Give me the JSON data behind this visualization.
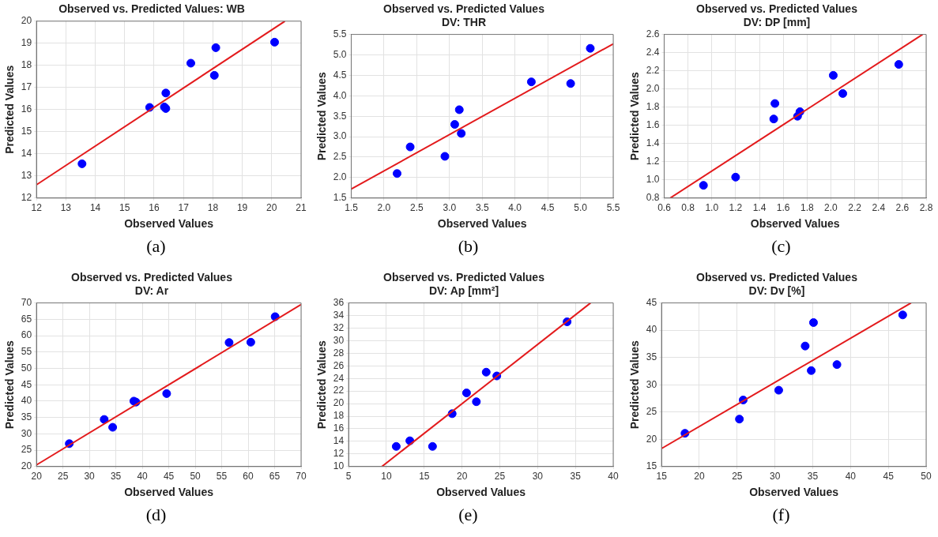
{
  "chart_data": [
    {
      "type": "scatter",
      "title": "Observed vs. Predicted Values: WB",
      "xlabel": "Observed Values",
      "ylabel": "Predicted Values",
      "xlim": [
        12,
        21
      ],
      "ylim": [
        12,
        20
      ],
      "xticks": [
        12,
        13,
        14,
        15,
        16,
        17,
        18,
        19,
        20,
        21
      ],
      "yticks": [
        12,
        13,
        14,
        15,
        16,
        17,
        18,
        19,
        20
      ],
      "grid": true,
      "legend": false,
      "marker": "circle",
      "annotations": [
        "(a)"
      ],
      "series": [
        {
          "color": "#0000ff",
          "x": [
            13.55,
            15.85,
            16.35,
            16.4,
            16.4,
            17.25,
            18.05,
            18.1,
            20.1
          ],
          "values": [
            13.55,
            16.1,
            16.12,
            16.05,
            16.75,
            18.1,
            17.55,
            18.8,
            19.05
          ]
        },
        {
          "type": "line",
          "marker": "none",
          "color": "#e31a1c",
          "x": [
            12,
            20.45
          ],
          "values": [
            12.6,
            20
          ]
        }
      ]
    },
    {
      "type": "scatter",
      "title": "Observed vs. Predicted Values",
      "subtitle": "DV: THR",
      "xlabel": "Observed Values",
      "ylabel": "Predicted Values",
      "xlim": [
        1.5,
        5.5
      ],
      "ylim": [
        1.5,
        5.5
      ],
      "xticks": [
        1.5,
        {
          "value": 2,
          "label": "2.0"
        },
        2.5,
        {
          "value": 3,
          "label": "3.0"
        },
        3.5,
        {
          "value": 4,
          "label": "4.0"
        },
        4.5,
        {
          "value": 5,
          "label": "5.0"
        },
        5.5
      ],
      "yticks": [
        1.5,
        {
          "value": 2,
          "label": "2.0"
        },
        2.5,
        {
          "value": 3,
          "label": "3.0"
        },
        3.5,
        {
          "value": 4,
          "label": "4.0"
        },
        4.5,
        {
          "value": 5,
          "label": "5.0"
        },
        5.5
      ],
      "grid": true,
      "legend": false,
      "marker": "circle",
      "annotations": [
        "(b)"
      ],
      "series": [
        {
          "color": "#0000ff",
          "x": [
            2.2,
            2.4,
            2.93,
            3.08,
            3.15,
            3.18,
            4.25,
            4.85,
            5.15
          ],
          "values": [
            2.1,
            2.75,
            2.52,
            3.3,
            3.66,
            3.08,
            4.34,
            4.3,
            5.16
          ]
        },
        {
          "type": "line",
          "marker": "none",
          "color": "#e31a1c",
          "x": [
            1.5,
            5.5
          ],
          "values": [
            1.72,
            5.27
          ]
        }
      ]
    },
    {
      "type": "scatter",
      "title": "Observed vs. Predicted Values",
      "subtitle": "DV: DP [mm]",
      "xlabel": "Observed Values",
      "ylabel": "Predicted Values",
      "xlim": [
        0.6,
        2.8
      ],
      "ylim": [
        0.8,
        2.6
      ],
      "xticks": [
        0.6,
        0.8,
        {
          "value": 1,
          "label": "1.0"
        },
        1.2,
        1.4,
        1.6,
        1.8,
        {
          "value": 2,
          "label": "2.0"
        },
        2.2,
        2.4,
        2.6,
        2.8
      ],
      "yticks": [
        0.8,
        {
          "value": 1,
          "label": "1.0"
        },
        1.2,
        1.4,
        1.6,
        1.8,
        {
          "value": 2,
          "label": "2.0"
        },
        2.2,
        2.4,
        2.6
      ],
      "grid": true,
      "legend": false,
      "marker": "circle",
      "annotations": [
        "(c)"
      ],
      "series": [
        {
          "color": "#0000ff",
          "x": [
            0.93,
            1.2,
            1.52,
            1.53,
            1.72,
            1.74,
            2.02,
            2.1,
            2.57
          ],
          "values": [
            0.94,
            1.03,
            1.67,
            1.84,
            1.7,
            1.75,
            2.15,
            1.95,
            2.27
          ]
        },
        {
          "type": "line",
          "marker": "none",
          "color": "#e31a1c",
          "x": [
            0.65,
            2.77
          ],
          "values": [
            0.8,
            2.6
          ]
        }
      ]
    },
    {
      "type": "scatter",
      "title": "Observed vs. Predicted Values",
      "subtitle": "DV: Ar",
      "xlabel": "Observed Values",
      "ylabel": "Predicted Values",
      "xlim": [
        20,
        70
      ],
      "ylim": [
        20,
        70
      ],
      "xticks": [
        20,
        25,
        30,
        35,
        40,
        45,
        50,
        55,
        60,
        65,
        70
      ],
      "yticks": [
        20,
        25,
        30,
        35,
        40,
        45,
        50,
        55,
        60,
        65,
        70
      ],
      "grid": true,
      "legend": false,
      "marker": "circle",
      "annotations": [
        "(d)"
      ],
      "series": [
        {
          "color": "#0000ff",
          "x": [
            26.2,
            32.8,
            34.4,
            38.4,
            38.8,
            44.6,
            56.4,
            60.5,
            65.1
          ],
          "values": [
            27,
            34.4,
            32,
            40,
            39.7,
            42.3,
            57.9,
            58,
            65.8
          ]
        },
        {
          "type": "line",
          "marker": "none",
          "color": "#e31a1c",
          "x": [
            20,
            70
          ],
          "values": [
            20.5,
            69.5
          ]
        }
      ]
    },
    {
      "type": "scatter",
      "title": "Observed vs. Predicted Values",
      "subtitle": "DV: Ap [mm²]",
      "xlabel": "Observed Values",
      "ylabel": "Predicted Values",
      "xlim": [
        5,
        40
      ],
      "ylim": [
        10,
        36
      ],
      "xticks": [
        5,
        10,
        15,
        20,
        25,
        30,
        35,
        40
      ],
      "yticks": [
        10,
        12,
        14,
        16,
        18,
        20,
        22,
        24,
        26,
        28,
        30,
        32,
        34,
        36
      ],
      "grid": true,
      "legend": false,
      "marker": "circle",
      "annotations": [
        "(e)"
      ],
      "series": [
        {
          "color": "#0000ff",
          "x": [
            11.3,
            13.1,
            16.1,
            18.7,
            20.6,
            21.9,
            23.2,
            24.6,
            33.9
          ],
          "values": [
            13.2,
            14.1,
            13.2,
            18.4,
            21.7,
            20.3,
            25,
            24.4,
            33
          ]
        },
        {
          "type": "line",
          "marker": "none",
          "color": "#e31a1c",
          "x": [
            9.4,
            37
          ],
          "values": [
            10,
            36
          ]
        }
      ]
    },
    {
      "type": "scatter",
      "title": "Observed vs. Predicted Values",
      "subtitle": "DV: Dv [%]",
      "xlabel": "Observed Values",
      "ylabel": "Predicted Values",
      "xlim": [
        15,
        50
      ],
      "ylim": [
        15,
        45
      ],
      "xticks": [
        15,
        20,
        25,
        30,
        35,
        40,
        45,
        50
      ],
      "yticks": [
        15,
        20,
        25,
        30,
        35,
        40,
        45
      ],
      "grid": true,
      "legend": false,
      "marker": "circle",
      "annotations": [
        "(f)"
      ],
      "series": [
        {
          "color": "#0000ff",
          "x": [
            18.1,
            25.3,
            25.8,
            30.5,
            34,
            34.8,
            35.1,
            38.2,
            46.9
          ],
          "values": [
            21.1,
            23.7,
            27.2,
            29,
            37.1,
            32.6,
            41.4,
            33.7,
            42.8
          ]
        },
        {
          "type": "line",
          "marker": "none",
          "color": "#e31a1c",
          "x": [
            15,
            48
          ],
          "values": [
            18.3,
            45
          ]
        }
      ]
    }
  ]
}
